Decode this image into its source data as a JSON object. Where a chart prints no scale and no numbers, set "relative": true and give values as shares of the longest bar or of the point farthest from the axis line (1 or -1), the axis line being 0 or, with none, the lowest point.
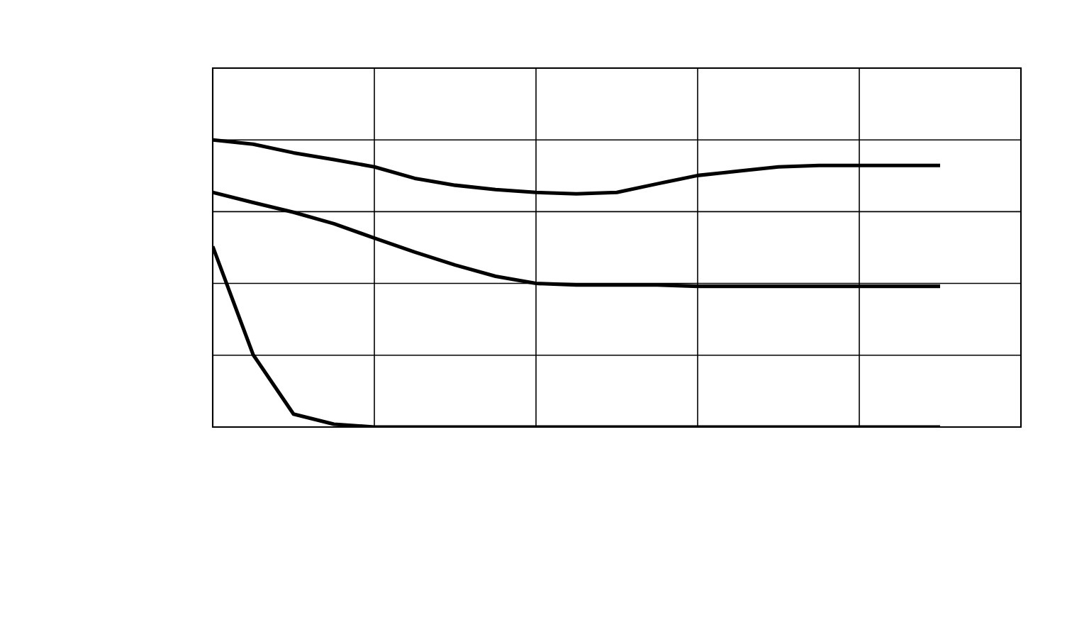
{
  "chart_data": {
    "type": "line",
    "relative": true,
    "grid": true,
    "marker": "none",
    "line_style": "solid",
    "tick_labels": false,
    "categories": [
      null,
      null,
      null,
      null,
      null,
      null,
      null,
      null,
      null,
      null,
      null,
      null,
      null,
      null,
      null,
      null,
      null,
      null,
      null,
      null,
      null
    ],
    "series": [
      {
        "color": "#000000",
        "values": [
          1.0,
          0.985,
          0.955,
          0.931,
          0.906,
          0.866,
          0.842,
          0.827,
          0.817,
          0.812,
          0.817,
          0.847,
          0.876,
          0.891,
          0.906,
          0.911,
          0.911,
          0.911,
          0.911,
          null,
          null
        ]
      },
      {
        "color": "#000000",
        "values": [
          0.817,
          0.782,
          0.748,
          0.708,
          0.658,
          0.609,
          0.564,
          0.525,
          0.5,
          0.495,
          0.495,
          0.495,
          0.49,
          0.49,
          0.49,
          0.49,
          0.49,
          0.49,
          0.49,
          null,
          null
        ]
      },
      {
        "color": "#000000",
        "values": [
          0.629,
          0.252,
          0.045,
          0.01,
          0.0,
          0.0,
          0.0,
          0.0,
          0.0,
          0.0,
          0.0,
          0.0,
          0.0,
          0.0,
          0.0,
          0.0,
          0.0,
          0.0,
          0.0,
          null,
          null
        ]
      }
    ]
  }
}
